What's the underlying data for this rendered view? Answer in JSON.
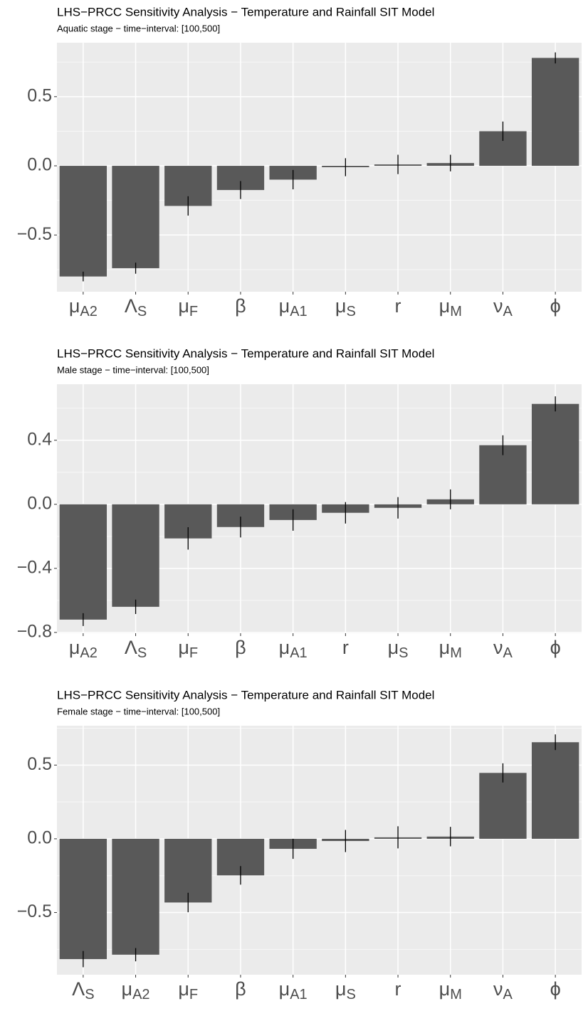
{
  "chart_data": [
    {
      "type": "bar",
      "title": "LHS−PRCC Sensitivity Analysis − Temperature and Rainfall SIT Model",
      "subtitle": "Aquatic stage − time−interval: [100,500]",
      "categories": [
        {
          "symbol": "μ",
          "sub": "A2"
        },
        {
          "symbol": "Λ",
          "sub": "S"
        },
        {
          "symbol": "μ",
          "sub": "F"
        },
        {
          "symbol": "β"
        },
        {
          "symbol": "μ",
          "sub": "A1"
        },
        {
          "symbol": "μ",
          "sub": "S"
        },
        {
          "symbol": "r"
        },
        {
          "symbol": "μ",
          "sub": "M"
        },
        {
          "symbol": "ν",
          "sub": "A"
        },
        {
          "symbol": "ϕ"
        }
      ],
      "values": [
        -0.8,
        -0.74,
        -0.29,
        -0.175,
        -0.1,
        -0.01,
        0.01,
        0.02,
        0.25,
        0.78
      ],
      "errors": [
        0.035,
        0.04,
        0.07,
        0.065,
        0.07,
        0.065,
        0.07,
        0.06,
        0.07,
        0.04
      ],
      "color": "#595959",
      "ylim": [
        -0.91,
        0.89
      ],
      "yticks": [
        {
          "value": -0.5,
          "label": "−0.5"
        },
        {
          "value": 0,
          "label": "0.0"
        },
        0.5
      ],
      "grid": true
    },
    {
      "type": "bar",
      "title": "LHS−PRCC Sensitivity Analysis − Temperature and Rainfall SIT Model",
      "subtitle": "Male stage − time−interval: [100,500]",
      "categories": [
        {
          "symbol": "μ",
          "sub": "A2"
        },
        {
          "symbol": "Λ",
          "sub": "S"
        },
        {
          "symbol": "μ",
          "sub": "F"
        },
        {
          "symbol": "β"
        },
        {
          "symbol": "μ",
          "sub": "A1"
        },
        {
          "symbol": "r"
        },
        {
          "symbol": "μ",
          "sub": "S"
        },
        {
          "symbol": "μ",
          "sub": "M"
        },
        {
          "symbol": "ν",
          "sub": "A"
        },
        {
          "symbol": "ϕ"
        }
      ],
      "values": [
        -0.72,
        -0.64,
        -0.213,
        -0.142,
        -0.098,
        -0.053,
        -0.022,
        0.031,
        0.369,
        0.627
      ],
      "errors": [
        0.04,
        0.045,
        0.07,
        0.065,
        0.067,
        0.067,
        0.067,
        0.062,
        0.062,
        0.047
      ],
      "color": "#595959",
      "ylim": [
        -0.805,
        0.75
      ],
      "yticks": [
        {
          "value": -0.8,
          "label": "−0.8"
        },
        {
          "value": -0.4,
          "label": "−0.4"
        },
        {
          "value": 0,
          "label": "0.0"
        },
        0.4
      ],
      "grid": true
    },
    {
      "type": "bar",
      "title": "LHS−PRCC Sensitivity Analysis − Temperature and Rainfall SIT Model",
      "subtitle": "Female stage − time−interval: [100,500]",
      "categories": [
        {
          "symbol": "Λ",
          "sub": "S"
        },
        {
          "symbol": "μ",
          "sub": "A2"
        },
        {
          "symbol": "μ",
          "sub": "F"
        },
        {
          "symbol": "β"
        },
        {
          "symbol": "μ",
          "sub": "A1"
        },
        {
          "symbol": "μ",
          "sub": "S"
        },
        {
          "symbol": "r"
        },
        {
          "symbol": "μ",
          "sub": "M"
        },
        {
          "symbol": "ν",
          "sub": "A"
        },
        {
          "symbol": "ϕ"
        }
      ],
      "values": [
        -0.816,
        -0.786,
        -0.432,
        -0.248,
        -0.068,
        -0.015,
        0.01,
        0.015,
        0.447,
        0.655
      ],
      "errors": [
        0.055,
        0.045,
        0.066,
        0.063,
        0.068,
        0.075,
        0.075,
        0.066,
        0.065,
        0.053
      ],
      "color": "#595959",
      "ylim": [
        -0.922,
        0.767
      ],
      "yticks": [
        {
          "value": -0.5,
          "label": "−0.5"
        },
        {
          "value": 0,
          "label": "0.0"
        },
        0.5
      ],
      "grid": true
    }
  ]
}
